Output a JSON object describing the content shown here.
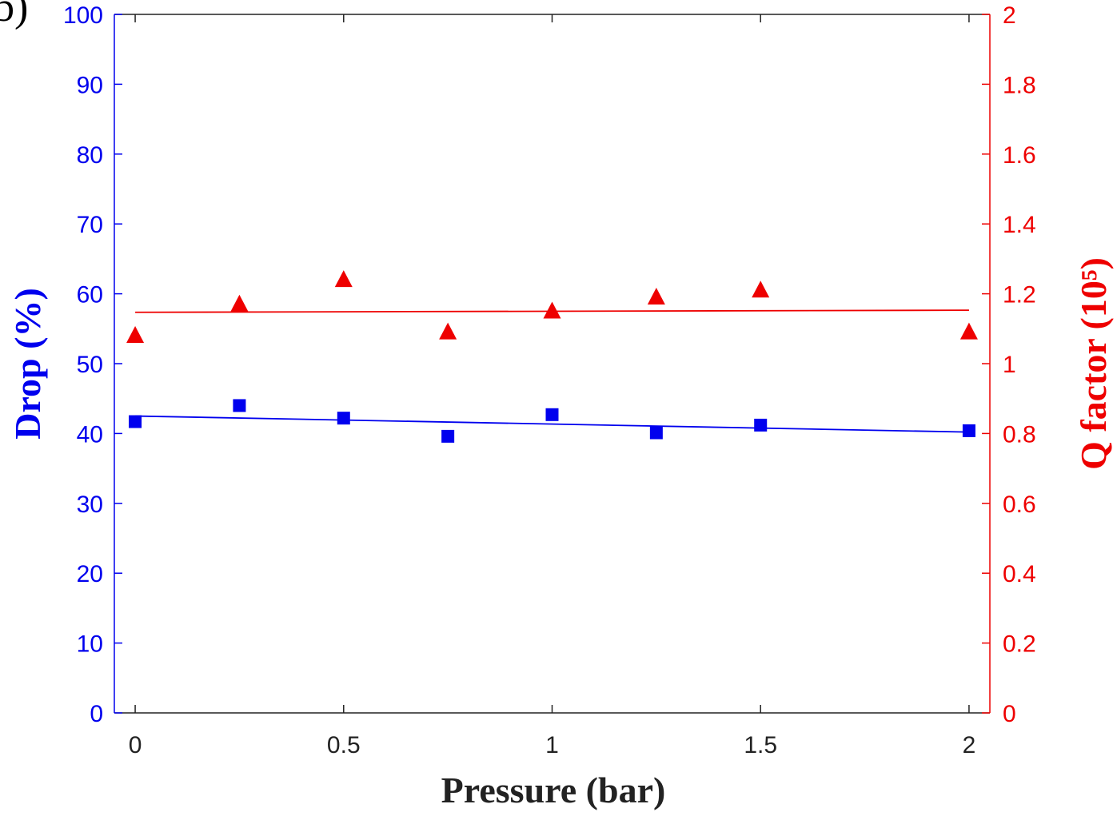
{
  "panel_label": "b)",
  "chart_data": {
    "type": "scatter",
    "xlabel": "Pressure (bar)",
    "ylabel_left": "Drop (%)",
    "ylabel_right": "Q factor (10⁵)",
    "xlim": [
      -0.05,
      2.05
    ],
    "ylim_left": [
      0,
      100
    ],
    "ylim_right": [
      0,
      2
    ],
    "x_ticks": [
      {
        "value": 0,
        "label": "0"
      },
      {
        "value": 0.5,
        "label": "0.5"
      },
      {
        "value": 1,
        "label": "1"
      },
      {
        "value": 1.5,
        "label": "1.5"
      },
      {
        "value": 2,
        "label": "2"
      }
    ],
    "y_left_ticks": [
      {
        "value": 0,
        "label": "0"
      },
      {
        "value": 10,
        "label": "10"
      },
      {
        "value": 20,
        "label": "20"
      },
      {
        "value": 30,
        "label": "30"
      },
      {
        "value": 40,
        "label": "40"
      },
      {
        "value": 50,
        "label": "50"
      },
      {
        "value": 60,
        "label": "60"
      },
      {
        "value": 70,
        "label": "70"
      },
      {
        "value": 80,
        "label": "80"
      },
      {
        "value": 90,
        "label": "90"
      },
      {
        "value": 100,
        "label": "100"
      }
    ],
    "y_right_ticks": [
      {
        "value": 0,
        "label": "0"
      },
      {
        "value": 0.2,
        "label": "0.2"
      },
      {
        "value": 0.4,
        "label": "0.4"
      },
      {
        "value": 0.6,
        "label": "0.6"
      },
      {
        "value": 0.8,
        "label": "0.8"
      },
      {
        "value": 1,
        "label": "1"
      },
      {
        "value": 1.2,
        "label": "1.2"
      },
      {
        "value": 1.4,
        "label": "1.4"
      },
      {
        "value": 1.6,
        "label": "1.6"
      },
      {
        "value": 1.8,
        "label": "1.8"
      },
      {
        "value": 2,
        "label": "2"
      }
    ],
    "grid": false,
    "series": [
      {
        "axis": "left",
        "marker": "square",
        "color": "#0000ee",
        "x": [
          0,
          0.25,
          0.5,
          0.75,
          1,
          1.25,
          1.5,
          2
        ],
        "y": [
          41.7,
          44.0,
          42.2,
          39.6,
          42.7,
          40.1,
          41.2,
          40.4
        ],
        "fit": {
          "x": [
            0,
            2
          ],
          "y": [
            42.5,
            40.2
          ]
        }
      },
      {
        "axis": "right",
        "marker": "triangle",
        "color": "#ee0000",
        "x": [
          0,
          0.25,
          0.5,
          0.75,
          1,
          1.25,
          1.5,
          2
        ],
        "y": [
          1.08,
          1.17,
          1.24,
          1.09,
          1.15,
          1.19,
          1.21,
          1.09
        ],
        "fit": {
          "x": [
            0,
            2
          ],
          "y": [
            1.147,
            1.153
          ]
        }
      }
    ]
  }
}
